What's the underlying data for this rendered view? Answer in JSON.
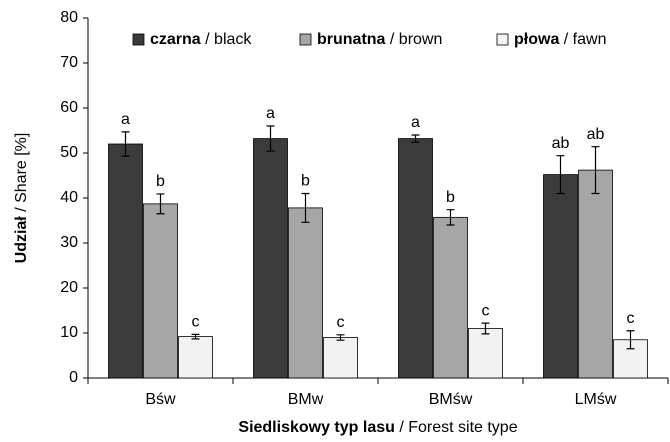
{
  "chart_data": {
    "type": "bar",
    "xlabel": "Siedliskowy typ lasu / Forest site type",
    "ylabel": "Udział / Share [%]",
    "categories": [
      "Bśw",
      "BMw",
      "BMśw",
      "LMśw"
    ],
    "series": [
      {
        "name": "czarna / black",
        "color": "#3b3b3b",
        "values": [
          52,
          53.2,
          53.2,
          45.2
        ],
        "errors": [
          2.7,
          2.8,
          0.8,
          4.2
        ],
        "labels": [
          "a",
          "a",
          "a",
          "ab"
        ]
      },
      {
        "name": "brunatna / brown",
        "color": "#a6a6a6",
        "values": [
          38.7,
          37.8,
          35.7,
          46.2
        ],
        "errors": [
          2.2,
          3.2,
          1.7,
          5.2
        ],
        "labels": [
          "b",
          "b",
          "b",
          "ab"
        ]
      },
      {
        "name": "płowa / fawn",
        "color": "#f2f2f2",
        "values": [
          9.2,
          9,
          11,
          8.5
        ],
        "errors": [
          0.5,
          0.6,
          1.2,
          2
        ],
        "labels": [
          "c",
          "c",
          "c",
          "c"
        ]
      }
    ],
    "ylim": [
      0,
      80
    ],
    "yticks": [
      0,
      10,
      20,
      30,
      40,
      50,
      60,
      70,
      80
    ]
  }
}
